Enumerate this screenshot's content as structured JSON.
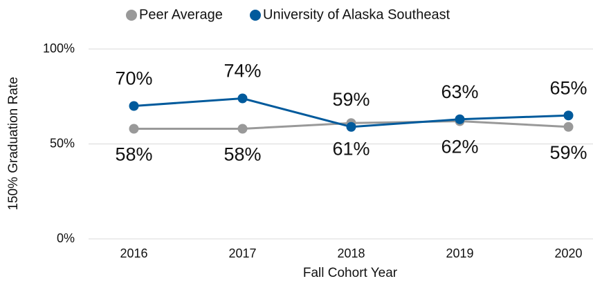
{
  "chart_data": {
    "type": "line",
    "x_label": "Fall Cohort Year",
    "y_label": "150% Graduation Rate",
    "categories": [
      "2016",
      "2017",
      "2018",
      "2019",
      "2020"
    ],
    "series": [
      {
        "name": "Peer Average",
        "color": "#999999",
        "values": [
          58,
          58,
          61,
          62,
          59
        ],
        "value_labels": [
          "58%",
          "58%",
          "61%",
          "62%",
          "59%"
        ]
      },
      {
        "name": "University of Alaska Southeast",
        "color": "#005a9c",
        "values": [
          70,
          74,
          59,
          63,
          65
        ],
        "value_labels": [
          "70%",
          "74%",
          "59%",
          "63%",
          "65%"
        ]
      }
    ],
    "ylim": [
      0,
      100
    ],
    "yticks": [
      {
        "value": 0,
        "label": "0%"
      },
      {
        "value": 50,
        "label": "50%"
      },
      {
        "value": 100,
        "label": "100%"
      }
    ],
    "grid": true,
    "legend": "top"
  }
}
